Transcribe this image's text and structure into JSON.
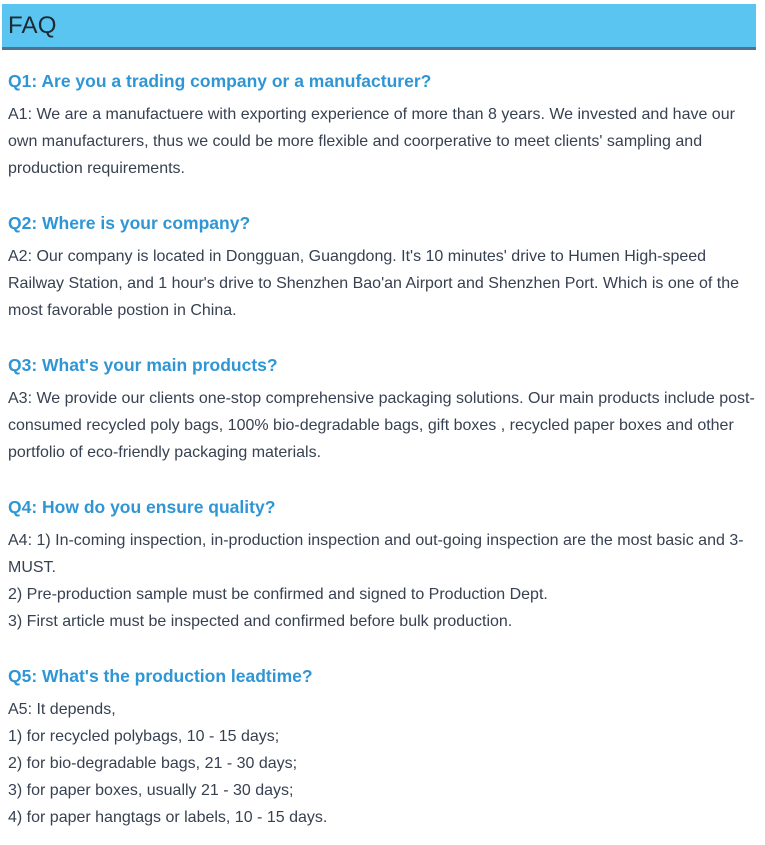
{
  "header": {
    "title": "FAQ"
  },
  "colors": {
    "header_bg": "#59c5f0",
    "header_border": "#4f7392",
    "question": "#2f96d5",
    "answer": "#374151",
    "title": "#1e2a32"
  },
  "faqs": [
    {
      "question": "Q1: Are you a trading company or a manufacturer?",
      "answer_lines": [
        "A1: We are a manufactuere with exporting experience of more than 8 years. We invested and have our own manufacturers, thus we could be more flexible and coorperative to meet clients' sampling and production requirements."
      ]
    },
    {
      "question": "Q2: Where is your company?",
      "answer_lines": [
        "A2: Our company is located in Dongguan, Guangdong. It's 10 minutes' drive to Humen High-speed Railway Station, and 1 hour's drive to Shenzhen Bao'an Airport and Shenzhen Port. Which is one of the most favorable postion in China."
      ]
    },
    {
      "question": "Q3: What's your main products?",
      "answer_lines": [
        "A3: We provide our clients one-stop comprehensive packaging solutions. Our main products include post-consumed recycled poly bags, 100% bio-degradable bags, gift boxes , recycled paper boxes and other portfolio of eco-friendly packaging materials."
      ]
    },
    {
      "question": "Q4: How do you ensure quality?",
      "answer_lines": [
        "A4: 1) In-coming inspection, in-production inspection and out-going inspection are the most basic and 3-MUST.",
        "2) Pre-production sample must be confirmed and signed to Production Dept.",
        "3) First article must be inspected and confirmed before bulk production."
      ]
    },
    {
      "question": "Q5: What's the production leadtime?",
      "answer_lines": [
        "A5: It depends,",
        "1) for recycled polybags, 10 - 15 days;",
        "2) for bio-degradable bags, 21 - 30 days;",
        "3) for paper boxes, usually 21 - 30 days;",
        "4) for paper hangtags or labels, 10 - 15 days."
      ]
    }
  ]
}
